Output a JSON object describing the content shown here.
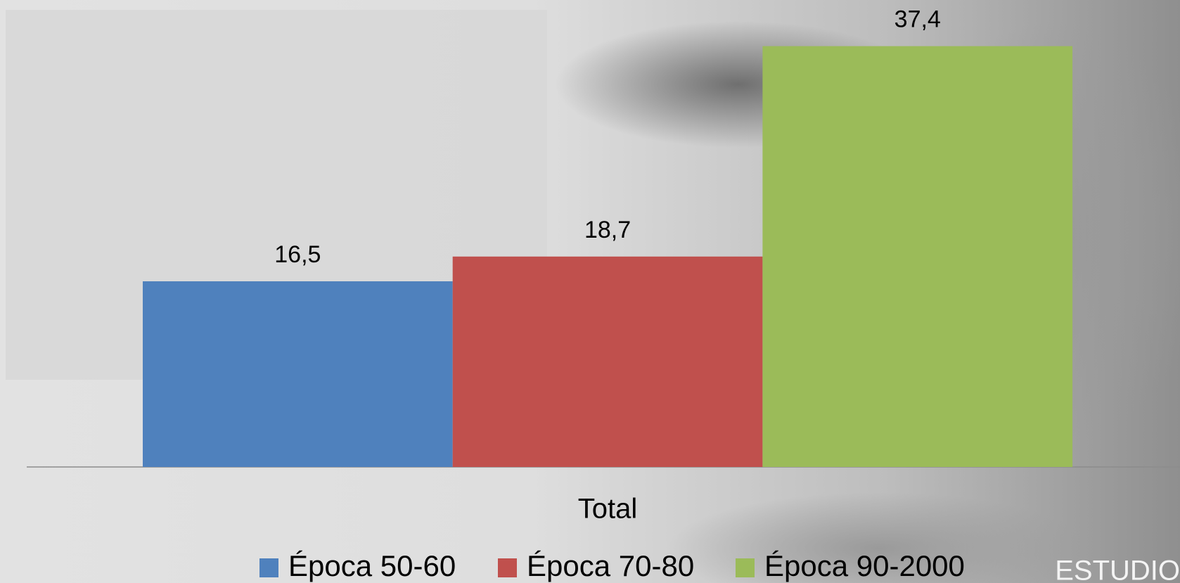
{
  "chart_data": {
    "type": "bar",
    "categories": [
      "Total"
    ],
    "series": [
      {
        "name": "Época 50-60",
        "color": "#4f81bd",
        "values": [
          16.5
        ],
        "value_labels": [
          "16,5"
        ]
      },
      {
        "name": "Época 70-80",
        "color": "#c0504d",
        "values": [
          18.7
        ],
        "value_labels": [
          "18,7"
        ]
      },
      {
        "name": "Época 90-2000",
        "color": "#9bbb59",
        "values": [
          37.4
        ],
        "value_labels": [
          "37,4"
        ]
      }
    ],
    "legend": "bottom",
    "watermark": "ESTUDIO"
  }
}
